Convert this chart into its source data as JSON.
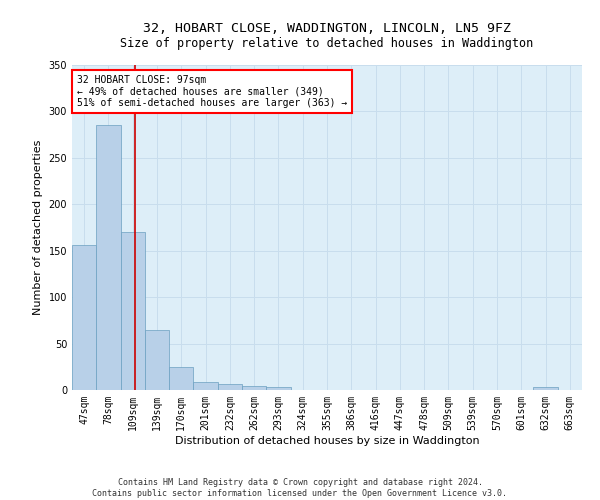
{
  "title_line1": "32, HOBART CLOSE, WADDINGTON, LINCOLN, LN5 9FZ",
  "title_line2": "Size of property relative to detached houses in Waddington",
  "xlabel": "Distribution of detached houses by size in Waddington",
  "ylabel": "Number of detached properties",
  "bar_color": "#b8d0e8",
  "bar_edge_color": "#6a9fc0",
  "grid_color": "#c8dded",
  "background_color": "#ddeef8",
  "annotation_box_text": "32 HOBART CLOSE: 97sqm\n← 49% of detached houses are smaller (349)\n51% of semi-detached houses are larger (363) →",
  "vline_color": "#cc0000",
  "categories": [
    "47sqm",
    "78sqm",
    "109sqm",
    "139sqm",
    "170sqm",
    "201sqm",
    "232sqm",
    "262sqm",
    "293sqm",
    "324sqm",
    "355sqm",
    "386sqm",
    "416sqm",
    "447sqm",
    "478sqm",
    "509sqm",
    "539sqm",
    "570sqm",
    "601sqm",
    "632sqm",
    "663sqm"
  ],
  "bar_heights": [
    156,
    285,
    170,
    65,
    25,
    9,
    6,
    4,
    3,
    0,
    0,
    0,
    0,
    0,
    0,
    0,
    0,
    0,
    0,
    3,
    0
  ],
  "ylim": [
    0,
    350
  ],
  "yticks": [
    0,
    50,
    100,
    150,
    200,
    250,
    300,
    350
  ],
  "footnote": "Contains HM Land Registry data © Crown copyright and database right 2024.\nContains public sector information licensed under the Open Government Licence v3.0.",
  "title_fontsize": 9.5,
  "subtitle_fontsize": 8.5,
  "axis_label_fontsize": 8,
  "tick_fontsize": 7,
  "annot_fontsize": 7,
  "footnote_fontsize": 6
}
